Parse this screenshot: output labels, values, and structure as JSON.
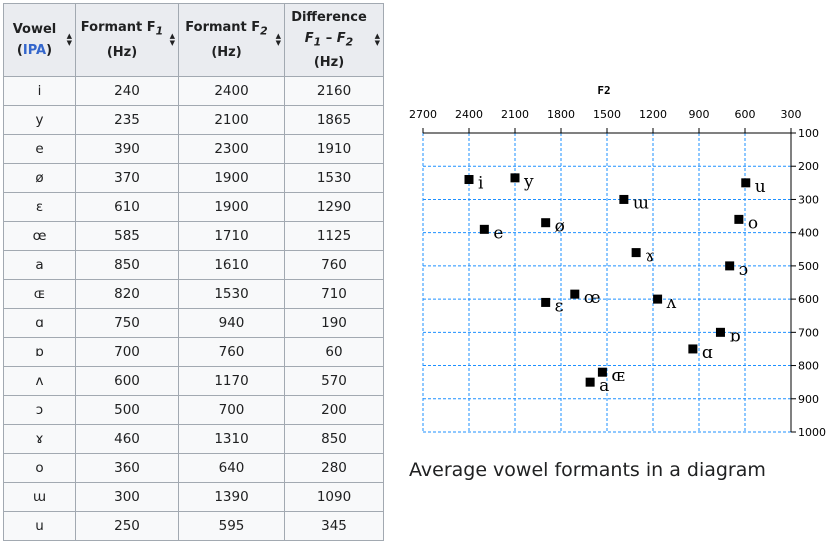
{
  "table": {
    "headers": {
      "vowel": "Vowel",
      "ipa": "IPA",
      "f1_label": "Formant F",
      "f1_sub": "1",
      "f2_label": "Formant F",
      "f2_sub": "2",
      "unit": "(Hz)",
      "diff_label": "Difference",
      "diff_f": "F",
      "diff_sub1": "1",
      "diff_minus": " – ",
      "diff_sub2": "2"
    },
    "rows": [
      {
        "vowel": "i",
        "f1": "240",
        "f2": "2400",
        "diff": "2160"
      },
      {
        "vowel": "y",
        "f1": "235",
        "f2": "2100",
        "diff": "1865"
      },
      {
        "vowel": "e",
        "f1": "390",
        "f2": "2300",
        "diff": "1910"
      },
      {
        "vowel": "ø",
        "f1": "370",
        "f2": "1900",
        "diff": "1530"
      },
      {
        "vowel": "ɛ",
        "f1": "610",
        "f2": "1900",
        "diff": "1290"
      },
      {
        "vowel": "œ",
        "f1": "585",
        "f2": "1710",
        "diff": "1125"
      },
      {
        "vowel": "a",
        "f1": "850",
        "f2": "1610",
        "diff": "760"
      },
      {
        "vowel": "ɶ",
        "f1": "820",
        "f2": "1530",
        "diff": "710"
      },
      {
        "vowel": "ɑ",
        "f1": "750",
        "f2": "940",
        "diff": "190"
      },
      {
        "vowel": "ɒ",
        "f1": "700",
        "f2": "760",
        "diff": "60"
      },
      {
        "vowel": "ʌ",
        "f1": "600",
        "f2": "1170",
        "diff": "570"
      },
      {
        "vowel": "ɔ",
        "f1": "500",
        "f2": "700",
        "diff": "200"
      },
      {
        "vowel": "ɤ",
        "f1": "460",
        "f2": "1310",
        "diff": "850"
      },
      {
        "vowel": "o",
        "f1": "360",
        "f2": "640",
        "diff": "280"
      },
      {
        "vowel": "ɯ",
        "f1": "300",
        "f2": "1390",
        "diff": "1090"
      },
      {
        "vowel": "u",
        "f1": "250",
        "f2": "595",
        "diff": "345"
      }
    ]
  },
  "caption": "Average vowel formants in a diagram",
  "chart_data": {
    "type": "scatter",
    "xlabel": "F2",
    "x_ticks": [
      2700,
      2400,
      2100,
      1800,
      1500,
      1200,
      900,
      600,
      300
    ],
    "y_ticks": [
      100,
      200,
      300,
      400,
      500,
      600,
      700,
      800,
      900,
      1000
    ],
    "xlim": [
      2700,
      300
    ],
    "ylim": [
      100,
      1000
    ],
    "x_reversed": true,
    "y_inverted": true,
    "x_axis_position": "top",
    "y_axis_position": "right",
    "grid": true,
    "marker_color": "#000000",
    "grid_color": "#1e90ff",
    "points": [
      {
        "label": "i",
        "x": 2400,
        "y": 240
      },
      {
        "label": "y",
        "x": 2100,
        "y": 235
      },
      {
        "label": "e",
        "x": 2300,
        "y": 390
      },
      {
        "label": "ø",
        "x": 1900,
        "y": 370
      },
      {
        "label": "ɛ",
        "x": 1900,
        "y": 610
      },
      {
        "label": "œ",
        "x": 1710,
        "y": 585
      },
      {
        "label": "a",
        "x": 1610,
        "y": 850
      },
      {
        "label": "ɶ",
        "x": 1530,
        "y": 820
      },
      {
        "label": "ɑ",
        "x": 940,
        "y": 750
      },
      {
        "label": "ɒ",
        "x": 760,
        "y": 700
      },
      {
        "label": "ʌ",
        "x": 1170,
        "y": 600
      },
      {
        "label": "ɔ",
        "x": 700,
        "y": 500
      },
      {
        "label": "ɤ",
        "x": 1310,
        "y": 460
      },
      {
        "label": "o",
        "x": 640,
        "y": 360
      },
      {
        "label": "ɯ",
        "x": 1390,
        "y": 300
      },
      {
        "label": "u",
        "x": 595,
        "y": 250
      }
    ]
  }
}
